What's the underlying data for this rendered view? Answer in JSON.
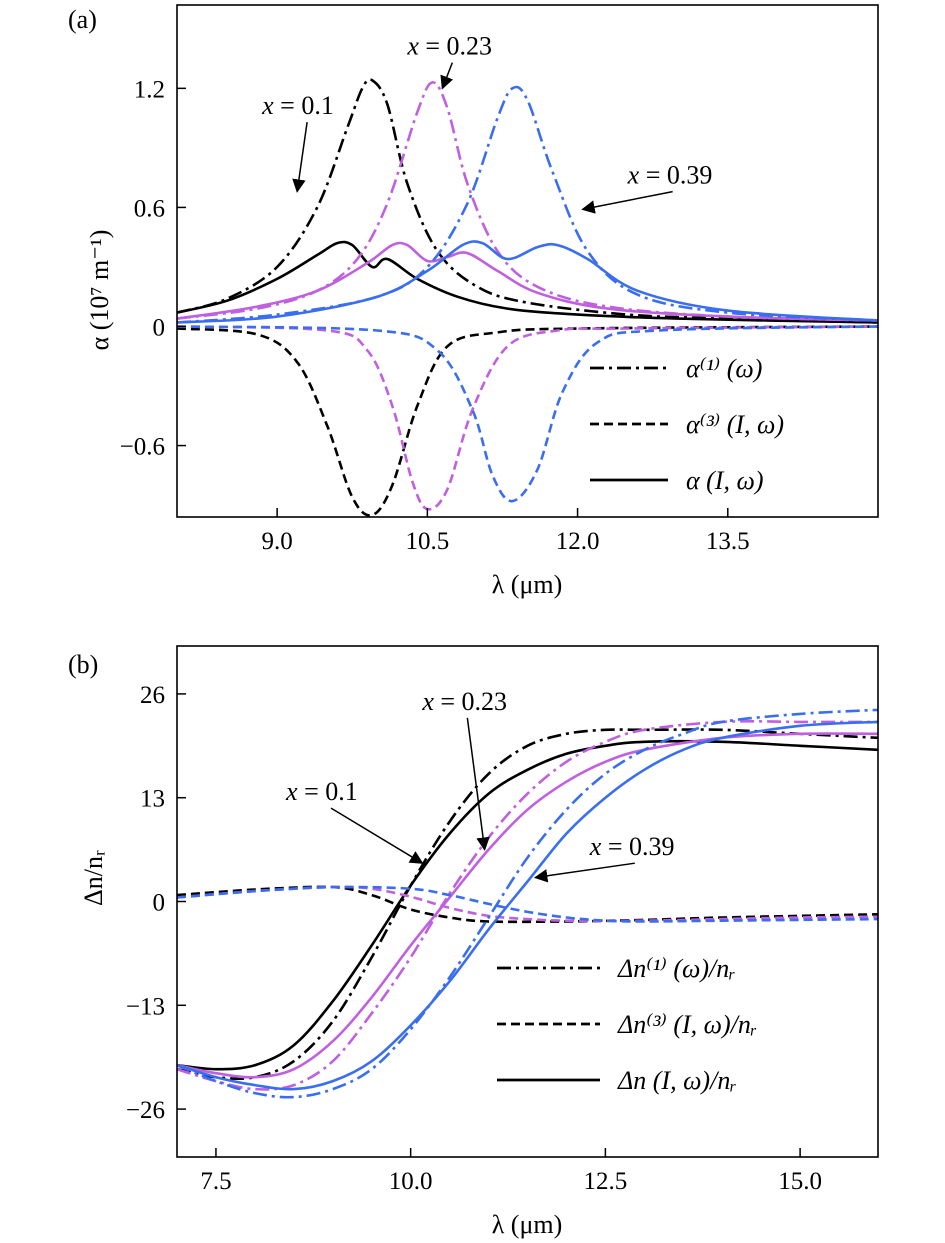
{
  "chart_data": [
    {
      "panel_label": "(a)",
      "type": "line",
      "xlabel": "λ (μm)",
      "ylabel": "α (10⁷ m⁻¹)",
      "xlim": [
        8.0,
        15.0
      ],
      "ylim": [
        -0.96,
        1.62
      ],
      "xticks": [
        {
          "v": 9.0,
          "label": "9.0"
        },
        {
          "v": 10.5,
          "label": "10.5"
        },
        {
          "v": 12.0,
          "label": "12.0"
        },
        {
          "v": 13.5,
          "label": "13.5"
        }
      ],
      "yticks": [
        {
          "v": 1.2,
          "label": "1.2"
        },
        {
          "v": 0.6,
          "label": "0.6"
        },
        {
          "v": 0.0,
          "label": "0"
        },
        {
          "v": -0.6,
          "label": "−0.6"
        }
      ],
      "legend": {
        "placement": "lower-right",
        "entries": [
          {
            "style": "dashdot",
            "label": "α⁽¹⁾ (ω)"
          },
          {
            "style": "dashed",
            "label": "α⁽³⁾ (I, ω)"
          },
          {
            "style": "solid",
            "label": "α (I, ω)"
          }
        ]
      },
      "annotations": [
        {
          "text": "x = 0.1",
          "x": 8.85,
          "y": 1.07,
          "arrow_to": [
            9.2,
            0.68
          ]
        },
        {
          "text": "x = 0.23",
          "x": 10.3,
          "y": 1.37,
          "arrow_to": [
            10.65,
            1.2
          ]
        },
        {
          "text": "x = 0.39",
          "x": 12.5,
          "y": 0.72,
          "arrow_to": [
            12.05,
            0.59
          ]
        }
      ],
      "series": [
        {
          "name": "x = 0.1",
          "color": "#000000",
          "style": "dashdot",
          "x": [
            8.0,
            8.5,
            9.0,
            9.4,
            9.7,
            9.85,
            9.95,
            10.1,
            10.3,
            10.6,
            11.0,
            11.5,
            12.5,
            13.5,
            15.0
          ],
          "y": [
            0.07,
            0.14,
            0.3,
            0.6,
            1.0,
            1.2,
            1.24,
            1.12,
            0.72,
            0.38,
            0.2,
            0.12,
            0.06,
            0.04,
            0.02
          ]
        },
        {
          "name": "x = 0.1",
          "color": "#000000",
          "style": "dashed",
          "x": [
            8.0,
            8.8,
            9.2,
            9.5,
            9.75,
            9.95,
            10.15,
            10.4,
            10.7,
            11.2,
            12.0,
            15.0
          ],
          "y": [
            -0.01,
            -0.04,
            -0.18,
            -0.5,
            -0.86,
            -0.95,
            -0.8,
            -0.4,
            -0.1,
            -0.03,
            -0.01,
            0.0
          ]
        },
        {
          "name": "x = 0.1",
          "color": "#000000",
          "style": "solid",
          "x": [
            8.0,
            8.5,
            9.0,
            9.4,
            9.6,
            9.75,
            9.95,
            10.1,
            10.4,
            10.8,
            11.3,
            12.0,
            13.0,
            15.0
          ],
          "y": [
            0.07,
            0.13,
            0.24,
            0.36,
            0.42,
            0.41,
            0.3,
            0.34,
            0.24,
            0.15,
            0.09,
            0.06,
            0.04,
            0.02
          ]
        },
        {
          "name": "x = 0.23",
          "color": "#c060e0",
          "style": "dashdot",
          "x": [
            8.0,
            8.8,
            9.4,
            9.8,
            10.1,
            10.4,
            10.55,
            10.7,
            10.9,
            11.2,
            11.6,
            12.3,
            13.5,
            15.0
          ],
          "y": [
            0.04,
            0.09,
            0.18,
            0.34,
            0.62,
            1.08,
            1.23,
            1.1,
            0.72,
            0.38,
            0.2,
            0.1,
            0.05,
            0.03
          ]
        },
        {
          "name": "x = 0.23",
          "color": "#c060e0",
          "style": "dashed",
          "x": [
            8.0,
            9.5,
            9.9,
            10.15,
            10.35,
            10.5,
            10.7,
            10.95,
            11.3,
            11.8,
            12.5,
            15.0
          ],
          "y": [
            0.0,
            -0.02,
            -0.12,
            -0.4,
            -0.78,
            -0.92,
            -0.82,
            -0.42,
            -0.1,
            -0.02,
            -0.01,
            0.0
          ]
        },
        {
          "name": "x = 0.23",
          "color": "#c060e0",
          "style": "solid",
          "x": [
            8.0,
            8.8,
            9.4,
            9.9,
            10.15,
            10.3,
            10.5,
            10.7,
            10.9,
            11.2,
            11.6,
            12.3,
            13.5,
            15.0
          ],
          "y": [
            0.04,
            0.1,
            0.18,
            0.32,
            0.41,
            0.41,
            0.33,
            0.35,
            0.37,
            0.28,
            0.17,
            0.09,
            0.05,
            0.03
          ]
        },
        {
          "name": "x = 0.39",
          "color": "#3a6ef0",
          "style": "dashdot",
          "x": [
            8.0,
            9.0,
            10.0,
            10.5,
            10.9,
            11.2,
            11.35,
            11.5,
            11.75,
            12.1,
            12.6,
            13.5,
            15.0
          ],
          "y": [
            0.02,
            0.06,
            0.15,
            0.3,
            0.62,
            1.05,
            1.2,
            1.14,
            0.78,
            0.38,
            0.16,
            0.07,
            0.03
          ]
        },
        {
          "name": "x = 0.39",
          "color": "#3a6ef0",
          "style": "dashed",
          "x": [
            8.0,
            10.0,
            10.6,
            10.95,
            11.15,
            11.35,
            11.6,
            11.85,
            12.2,
            12.8,
            15.0
          ],
          "y": [
            0.0,
            -0.02,
            -0.12,
            -0.42,
            -0.75,
            -0.88,
            -0.72,
            -0.33,
            -0.08,
            -0.02,
            0.0
          ]
        },
        {
          "name": "x = 0.39",
          "color": "#3a6ef0",
          "style": "solid",
          "x": [
            8.0,
            9.0,
            10.0,
            10.5,
            10.85,
            11.05,
            11.3,
            11.6,
            11.8,
            12.1,
            12.6,
            13.5,
            15.0
          ],
          "y": [
            0.02,
            0.05,
            0.15,
            0.28,
            0.41,
            0.42,
            0.34,
            0.4,
            0.41,
            0.34,
            0.18,
            0.08,
            0.03
          ]
        }
      ]
    },
    {
      "panel_label": "(b)",
      "type": "line",
      "xlabel": "λ (μm)",
      "ylabel": "Δn/nᵣ",
      "xlim": [
        7.0,
        16.0
      ],
      "ylim": [
        -32.0,
        32.0
      ],
      "xticks": [
        {
          "v": 7.5,
          "label": "7.5"
        },
        {
          "v": 10.0,
          "label": "10.0"
        },
        {
          "v": 12.5,
          "label": "12.5"
        },
        {
          "v": 15.0,
          "label": "15.0"
        }
      ],
      "yticks": [
        {
          "v": 26,
          "label": "26"
        },
        {
          "v": 13,
          "label": "13"
        },
        {
          "v": 0,
          "label": "0"
        },
        {
          "v": -13,
          "label": "−13"
        },
        {
          "v": -26,
          "label": "−26"
        }
      ],
      "legend": {
        "placement": "lower-right",
        "entries": [
          {
            "style": "dashdot",
            "label": "Δn⁽¹⁾ (ω)/nᵣ"
          },
          {
            "style": "dashed",
            "label": "Δn⁽³⁾ (I, ω)/nᵣ"
          },
          {
            "style": "solid",
            "label": "Δn (I, ω)/nᵣ"
          }
        ]
      },
      "annotations": [
        {
          "text": "x = 0.1",
          "x": 8.4,
          "y": 12.7,
          "arrow_to": [
            10.15,
            4.8
          ]
        },
        {
          "text": "x = 0.23",
          "x": 10.15,
          "y": 24.0,
          "arrow_to": [
            10.95,
            6.5
          ]
        },
        {
          "text": "x = 0.39",
          "x": 12.3,
          "y": 5.8,
          "arrow_to": [
            11.6,
            3.0
          ]
        }
      ],
      "series": [
        {
          "name": "x = 0.1",
          "color": "#000000",
          "style": "dashdot",
          "x": [
            7.0,
            7.5,
            8.0,
            8.5,
            9.0,
            9.5,
            10.0,
            10.5,
            11.0,
            11.5,
            12.0,
            12.5,
            13.0,
            14.0,
            15.0,
            16.0
          ],
          "y": [
            -21.0,
            -22.0,
            -22.0,
            -20.0,
            -15.0,
            -7.0,
            2.0,
            10.0,
            16.0,
            19.5,
            21.0,
            21.5,
            21.5,
            21.5,
            21.0,
            20.5
          ]
        },
        {
          "name": "x = 0.1",
          "color": "#000000",
          "style": "dashed",
          "x": [
            7.0,
            8.0,
            9.0,
            9.5,
            10.0,
            10.5,
            11.0,
            12.0,
            13.0,
            14.0,
            15.0,
            16.0
          ],
          "y": [
            0.8,
            1.5,
            1.8,
            0.8,
            -1.0,
            -2.0,
            -2.5,
            -2.5,
            -2.3,
            -2.0,
            -1.8,
            -1.6
          ]
        },
        {
          "name": "x = 0.1",
          "color": "#000000",
          "style": "solid",
          "x": [
            7.0,
            7.5,
            8.0,
            8.5,
            9.0,
            9.5,
            10.0,
            10.5,
            11.0,
            11.5,
            12.0,
            12.5,
            13.0,
            14.0,
            15.0,
            16.0
          ],
          "y": [
            -20.5,
            -21.0,
            -20.5,
            -18.0,
            -12.5,
            -5.5,
            2.0,
            8.5,
            13.5,
            16.5,
            18.5,
            19.5,
            20.0,
            20.0,
            19.5,
            19.0
          ]
        },
        {
          "name": "x = 0.23",
          "color": "#c060e0",
          "style": "dashdot",
          "x": [
            7.0,
            7.5,
            8.0,
            8.5,
            9.0,
            9.5,
            10.0,
            10.5,
            11.0,
            11.5,
            12.0,
            12.5,
            13.0,
            14.0,
            15.0,
            16.0
          ],
          "y": [
            -21.0,
            -22.5,
            -23.5,
            -23.0,
            -20.0,
            -14.0,
            -7.0,
            1.0,
            8.0,
            13.5,
            17.5,
            20.0,
            21.5,
            22.5,
            22.5,
            22.5
          ]
        },
        {
          "name": "x = 0.23",
          "color": "#c060e0",
          "style": "dashed",
          "x": [
            7.0,
            8.0,
            9.0,
            9.5,
            10.0,
            10.5,
            11.0,
            11.5,
            12.0,
            13.0,
            14.0,
            15.0,
            16.0
          ],
          "y": [
            0.5,
            1.3,
            1.8,
            1.6,
            0.6,
            -0.8,
            -1.8,
            -2.2,
            -2.4,
            -2.4,
            -2.2,
            -2.0,
            -1.9
          ]
        },
        {
          "name": "x = 0.23",
          "color": "#c060e0",
          "style": "solid",
          "x": [
            7.0,
            7.5,
            8.0,
            8.5,
            9.0,
            9.5,
            10.0,
            10.5,
            11.0,
            11.5,
            12.0,
            12.5,
            13.0,
            14.0,
            15.0,
            16.0
          ],
          "y": [
            -20.5,
            -21.5,
            -22.0,
            -21.0,
            -17.5,
            -12.0,
            -5.5,
            0.5,
            6.5,
            11.5,
            15.0,
            17.5,
            19.0,
            20.5,
            21.0,
            21.0
          ]
        },
        {
          "name": "x = 0.39",
          "color": "#3a6ef0",
          "style": "dashdot",
          "x": [
            7.0,
            7.5,
            8.0,
            8.5,
            9.0,
            9.5,
            10.0,
            10.5,
            11.0,
            11.5,
            12.0,
            12.5,
            13.0,
            13.5,
            14.0,
            15.0,
            16.0
          ],
          "y": [
            -20.5,
            -22.5,
            -24.0,
            -24.5,
            -23.5,
            -21.0,
            -16.0,
            -9.5,
            -2.0,
            5.5,
            11.5,
            16.0,
            19.0,
            21.0,
            22.5,
            23.5,
            24.0
          ]
        },
        {
          "name": "x = 0.39",
          "color": "#3a6ef0",
          "style": "dashed",
          "x": [
            7.0,
            8.0,
            9.0,
            10.0,
            10.5,
            11.0,
            11.5,
            12.0,
            12.5,
            13.0,
            14.0,
            15.0,
            16.0
          ],
          "y": [
            0.5,
            1.3,
            1.8,
            1.6,
            0.8,
            -0.3,
            -1.3,
            -2.0,
            -2.4,
            -2.5,
            -2.4,
            -2.3,
            -2.2
          ]
        },
        {
          "name": "x = 0.39",
          "color": "#3a6ef0",
          "style": "solid",
          "x": [
            7.0,
            7.5,
            8.0,
            8.5,
            9.0,
            9.5,
            10.0,
            10.5,
            11.0,
            11.5,
            12.0,
            12.5,
            13.0,
            13.5,
            14.0,
            15.0,
            16.0
          ],
          "y": [
            -20.5,
            -22.0,
            -23.0,
            -23.5,
            -22.5,
            -20.0,
            -15.5,
            -10.0,
            -3.5,
            2.5,
            8.5,
            13.0,
            16.5,
            19.0,
            20.5,
            22.0,
            22.5
          ]
        }
      ]
    }
  ]
}
